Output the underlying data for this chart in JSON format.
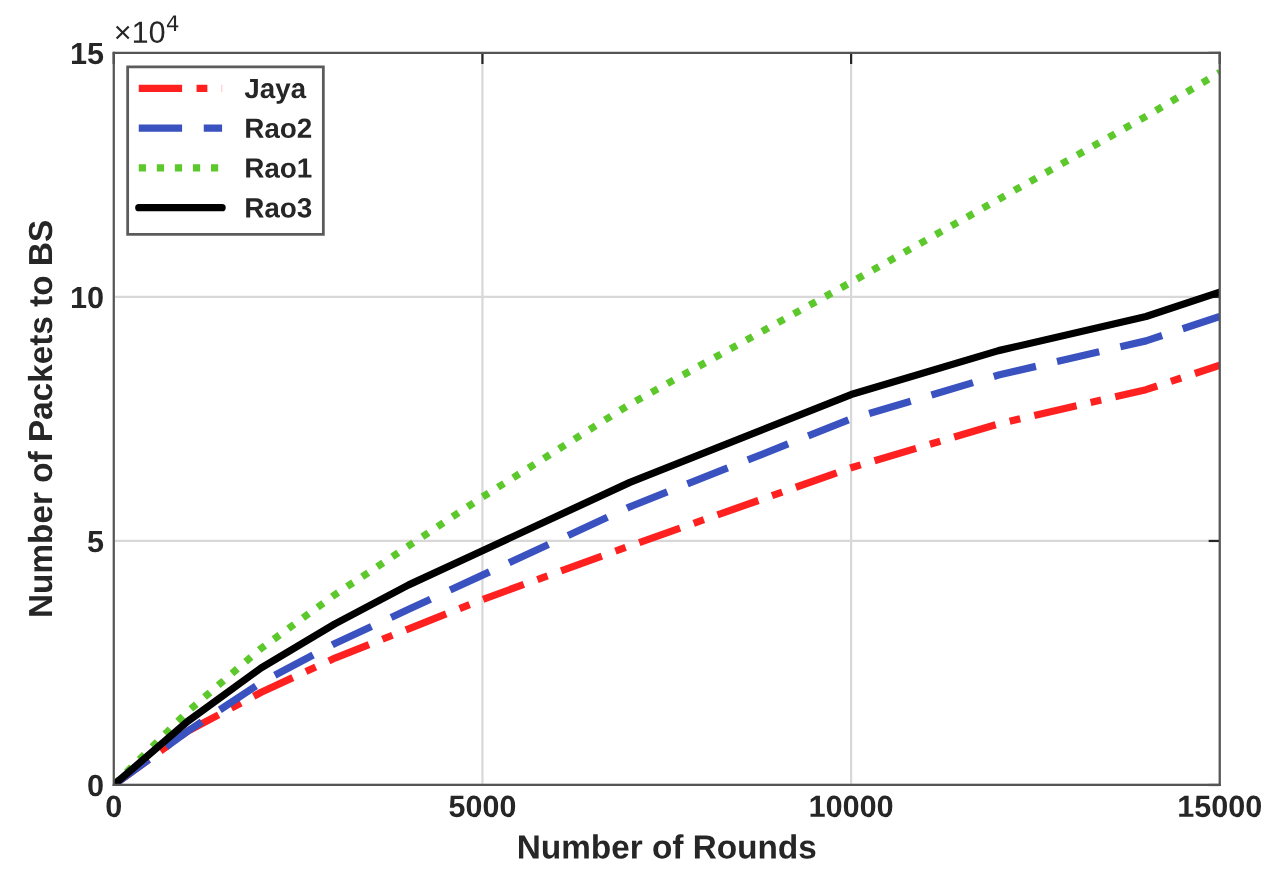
{
  "chart_data": {
    "type": "line",
    "xlabel": "Number of Rounds",
    "ylabel": "Number of Packets to BS",
    "annotations": [
      "×10$^{4}$"
    ],
    "x": [
      0,
      1000,
      2000,
      3000,
      4000,
      5000,
      7000,
      10000,
      12000,
      14000,
      15000
    ],
    "series": [
      {
        "name": "Jaya",
        "color": "#ff2020",
        "line_style": "dashdot",
        "values": [
          0,
          1.1,
          1.9,
          2.6,
          3.2,
          3.8,
          4.9,
          6.5,
          7.4,
          8.1,
          8.6
        ]
      },
      {
        "name": "Rao2",
        "color": "#3a52c0",
        "line_style": "dashed",
        "values": [
          0,
          1.1,
          2.1,
          2.9,
          3.6,
          4.3,
          5.7,
          7.5,
          8.4,
          9.1,
          9.6
        ]
      },
      {
        "name": "Rao1",
        "color": "#5cc82c",
        "line_style": "dotted",
        "values": [
          0,
          1.5,
          2.8,
          3.9,
          4.9,
          5.9,
          7.8,
          10.3,
          12.0,
          13.7,
          14.6
        ]
      },
      {
        "name": "Rao3",
        "color": "#000000",
        "line_style": "solid",
        "values": [
          0,
          1.3,
          2.4,
          3.3,
          4.1,
          4.8,
          6.2,
          8.0,
          8.9,
          9.6,
          10.1
        ]
      }
    ],
    "xlim": [
      0,
      15000
    ],
    "ylim": [
      0,
      15
    ],
    "xticks": [
      0,
      5000,
      10000,
      15000
    ],
    "yticks": [
      0,
      5,
      10,
      15
    ],
    "grid": true,
    "legend": "top left"
  }
}
